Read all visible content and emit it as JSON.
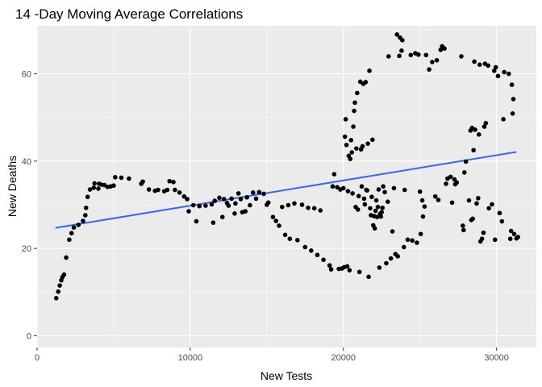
{
  "chart_data": {
    "type": "scatter",
    "title": "14 -Day Moving Average Correlations",
    "xlabel": "New Tests",
    "ylabel": "New Deaths",
    "xlim": [
      0,
      32600
    ],
    "ylim": [
      -2.7,
      71
    ],
    "x_ticks": [
      0,
      10000,
      20000,
      30000
    ],
    "x_tick_labels": [
      "0",
      "10000",
      "20000",
      "30000"
    ],
    "y_ticks": [
      0,
      20,
      40,
      60
    ],
    "y_tick_labels": [
      "0",
      "20",
      "40",
      "60"
    ],
    "panel_color": "#ebebeb",
    "point_color": "#000000",
    "fit_line": {
      "method": "linear",
      "color": "#3366ff",
      "x": [
        1200,
        31300
      ],
      "y": [
        24.7,
        42.1
      ]
    },
    "points": [
      [
        1250,
        8.6
      ],
      [
        1380,
        10.1
      ],
      [
        1480,
        11.5
      ],
      [
        1580,
        12.7
      ],
      [
        1650,
        13.4
      ],
      [
        1760,
        14.0
      ],
      [
        1900,
        17.9
      ],
      [
        2100,
        22.0
      ],
      [
        2250,
        23.5
      ],
      [
        2400,
        24.8
      ],
      [
        2700,
        25.4
      ],
      [
        3000,
        26.3
      ],
      [
        3150,
        27.6
      ],
      [
        3200,
        29.3
      ],
      [
        3300,
        31.8
      ],
      [
        3450,
        33.5
      ],
      [
        3700,
        33.9
      ],
      [
        3750,
        34.9
      ],
      [
        4000,
        33.7
      ],
      [
        4050,
        34.8
      ],
      [
        4200,
        34.6
      ],
      [
        4400,
        34.5
      ],
      [
        4600,
        34.1
      ],
      [
        4800,
        34.2
      ],
      [
        5000,
        34.4
      ],
      [
        5100,
        36.3
      ],
      [
        5500,
        36.2
      ],
      [
        6000,
        36.0
      ],
      [
        6800,
        34.8
      ],
      [
        6900,
        35.3
      ],
      [
        7300,
        33.5
      ],
      [
        7700,
        33.2
      ],
      [
        7900,
        33.4
      ],
      [
        8300,
        33.1
      ],
      [
        8500,
        33.4
      ],
      [
        8650,
        35.4
      ],
      [
        8900,
        35.2
      ],
      [
        9000,
        33.4
      ],
      [
        9300,
        32.8
      ],
      [
        9600,
        31.9
      ],
      [
        9800,
        31.3
      ],
      [
        9900,
        28.5
      ],
      [
        10200,
        29.9
      ],
      [
        10400,
        26.2
      ],
      [
        10600,
        29.7
      ],
      [
        11000,
        29.8
      ],
      [
        11400,
        30.1
      ],
      [
        11500,
        25.9
      ],
      [
        11600,
        30.9
      ],
      [
        11900,
        31.6
      ],
      [
        12100,
        27.2
      ],
      [
        12200,
        31.3
      ],
      [
        12400,
        30.4
      ],
      [
        12500,
        29.8
      ],
      [
        12700,
        31.4
      ],
      [
        12900,
        28.0
      ],
      [
        12950,
        30.3
      ],
      [
        13150,
        32.6
      ],
      [
        13300,
        31.3
      ],
      [
        13400,
        28.3
      ],
      [
        13600,
        28.5
      ],
      [
        13700,
        31.7
      ],
      [
        13900,
        29.9
      ],
      [
        14100,
        32.8
      ],
      [
        14300,
        31.4
      ],
      [
        14500,
        32.9
      ],
      [
        14800,
        32.5
      ],
      [
        15000,
        30.0
      ],
      [
        15100,
        30.5
      ],
      [
        15400,
        27.2
      ],
      [
        15600,
        26.3
      ],
      [
        15800,
        25.2
      ],
      [
        16000,
        29.5
      ],
      [
        16200,
        23.1
      ],
      [
        16400,
        29.9
      ],
      [
        16500,
        22.2
      ],
      [
        16800,
        30.3
      ],
      [
        17000,
        21.9
      ],
      [
        17300,
        30.0
      ],
      [
        17500,
        20.3
      ],
      [
        17700,
        29.3
      ],
      [
        17900,
        19.5
      ],
      [
        18100,
        29.2
      ],
      [
        18300,
        18.5
      ],
      [
        18500,
        28.7
      ],
      [
        18700,
        17.4
      ],
      [
        19100,
        16.1
      ],
      [
        19200,
        15.2
      ],
      [
        19300,
        34.2
      ],
      [
        19400,
        37.0
      ],
      [
        19600,
        34.0
      ],
      [
        19700,
        15.3
      ],
      [
        19800,
        33.5
      ],
      [
        19900,
        15.4
      ],
      [
        20000,
        33.8
      ],
      [
        20050,
        15.7
      ],
      [
        20100,
        45.6
      ],
      [
        20150,
        49.6
      ],
      [
        20200,
        43.7
      ],
      [
        20250,
        15.9
      ],
      [
        20300,
        33.1
      ],
      [
        20350,
        41.2
      ],
      [
        20400,
        15.0
      ],
      [
        20450,
        40.5
      ],
      [
        20500,
        44.8
      ],
      [
        20550,
        42.0
      ],
      [
        20600,
        32.6
      ],
      [
        20650,
        47.9
      ],
      [
        20700,
        51.5
      ],
      [
        20750,
        53.4
      ],
      [
        20800,
        29.5
      ],
      [
        20850,
        42.9
      ],
      [
        20900,
        55.6
      ],
      [
        20950,
        28.9
      ],
      [
        21000,
        32.0
      ],
      [
        21050,
        14.6
      ],
      [
        21100,
        58.2
      ],
      [
        21150,
        42.7
      ],
      [
        21200,
        34.2
      ],
      [
        21250,
        43.4
      ],
      [
        21300,
        57.7
      ],
      [
        21350,
        31.4
      ],
      [
        21400,
        30.1
      ],
      [
        21450,
        58.1
      ],
      [
        21500,
        33.4
      ],
      [
        21550,
        33.3
      ],
      [
        21600,
        44.0
      ],
      [
        21650,
        13.5
      ],
      [
        21700,
        60.7
      ],
      [
        21750,
        29.2
      ],
      [
        21800,
        27.6
      ],
      [
        21850,
        31.8
      ],
      [
        21900,
        44.9
      ],
      [
        21950,
        25.3
      ],
      [
        22000,
        27.4
      ],
      [
        22050,
        24.6
      ],
      [
        22100,
        28.6
      ],
      [
        22150,
        31.0
      ],
      [
        22200,
        27.2
      ],
      [
        22250,
        29.5
      ],
      [
        22300,
        33.5
      ],
      [
        22350,
        15.6
      ],
      [
        22400,
        27.9
      ],
      [
        22450,
        27.3
      ],
      [
        22500,
        28.3
      ],
      [
        22550,
        29.3
      ],
      [
        22600,
        34.2
      ],
      [
        22700,
        32.9
      ],
      [
        22800,
        16.6
      ],
      [
        22900,
        30.7
      ],
      [
        22950,
        64.0
      ],
      [
        23100,
        17.7
      ],
      [
        23200,
        23.9
      ],
      [
        23300,
        33.8
      ],
      [
        23400,
        18.7
      ],
      [
        23500,
        69.0
      ],
      [
        23550,
        18.2
      ],
      [
        23650,
        64.1
      ],
      [
        23700,
        68.3
      ],
      [
        23800,
        65.3
      ],
      [
        23850,
        67.7
      ],
      [
        23950,
        20.3
      ],
      [
        24000,
        33.4
      ],
      [
        24200,
        22.0
      ],
      [
        24400,
        64.3
      ],
      [
        24500,
        21.8
      ],
      [
        24700,
        64.7
      ],
      [
        24800,
        21.3
      ],
      [
        24900,
        64.4
      ],
      [
        25000,
        33.0
      ],
      [
        25050,
        23.3
      ],
      [
        25150,
        31.0
      ],
      [
        25200,
        27.3
      ],
      [
        25300,
        29.6
      ],
      [
        25400,
        64.3
      ],
      [
        25600,
        61.0
      ],
      [
        25800,
        62.7
      ],
      [
        26000,
        31.9
      ],
      [
        26100,
        63.1
      ],
      [
        26200,
        31.1
      ],
      [
        26350,
        65.5
      ],
      [
        26450,
        66.3
      ],
      [
        26600,
        65.8
      ],
      [
        26700,
        34.8
      ],
      [
        26800,
        36.0
      ],
      [
        27000,
        36.4
      ],
      [
        27100,
        30.5
      ],
      [
        27250,
        35.8
      ],
      [
        27300,
        34.7
      ],
      [
        27400,
        35.1
      ],
      [
        27700,
        64.0
      ],
      [
        27800,
        25.2
      ],
      [
        27850,
        24.2
      ],
      [
        27900,
        37.4
      ],
      [
        28000,
        39.9
      ],
      [
        28200,
        31.0
      ],
      [
        28300,
        47.0
      ],
      [
        28350,
        26.5
      ],
      [
        28400,
        47.6
      ],
      [
        28450,
        26.8
      ],
      [
        28500,
        42.5
      ],
      [
        28550,
        62.8
      ],
      [
        28600,
        47.2
      ],
      [
        28700,
        30.3
      ],
      [
        28800,
        31.5
      ],
      [
        28850,
        46.1
      ],
      [
        28900,
        62.1
      ],
      [
        28950,
        21.6
      ],
      [
        29050,
        22.2
      ],
      [
        29150,
        23.6
      ],
      [
        29200,
        47.9
      ],
      [
        29250,
        62.3
      ],
      [
        29300,
        48.7
      ],
      [
        29450,
        61.9
      ],
      [
        29500,
        29.2
      ],
      [
        29700,
        30.1
      ],
      [
        29850,
        60.7
      ],
      [
        29900,
        22.0
      ],
      [
        29950,
        61.5
      ],
      [
        30100,
        59.5
      ],
      [
        30200,
        28.1
      ],
      [
        30350,
        26.2
      ],
      [
        30450,
        49.6
      ],
      [
        30500,
        60.4
      ],
      [
        30800,
        60.0
      ],
      [
        30900,
        22.2
      ],
      [
        30950,
        24.0
      ],
      [
        31000,
        57.5
      ],
      [
        31050,
        50.9
      ],
      [
        31100,
        54.2
      ],
      [
        31150,
        23.3
      ],
      [
        31300,
        22.3
      ],
      [
        31400,
        22.6
      ]
    ]
  }
}
